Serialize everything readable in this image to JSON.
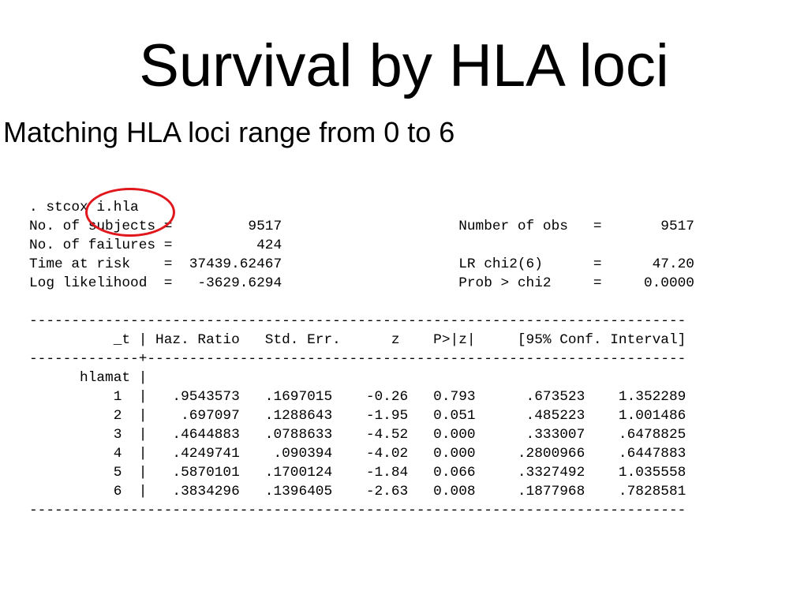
{
  "title": "Survival by HLA loci",
  "subtitle": "Matching HLA loci range from 0 to 6",
  "colors": {
    "highlight_circle": "#e0181e",
    "text": "#000000",
    "background": "#ffffff"
  },
  "output_lines": [
    ". stcox i.hla",
    "No. of subjects =         9517                     Number of obs   =       9517",
    "No. of failures =          424",
    "Time at risk    =  37439.62467                     LR chi2(6)      =      47.20",
    "Log likelihood  =   -3629.6294                     Prob > chi2     =     0.0000",
    "",
    "------------------------------------------------------------------------------",
    "          _t | Haz. Ratio   Std. Err.      z    P>|z|     [95% Conf. Interval]",
    "-------------+----------------------------------------------------------------",
    "      hlamat |",
    "          1  |   .9543573   .1697015    -0.26   0.793      .673523    1.352289",
    "          2  |    .697097   .1288643    -1.95   0.051      .485223    1.001486",
    "          3  |   .4644883   .0788633    -4.52   0.000      .333007    .6478825",
    "          4  |   .4249741    .090394    -4.02   0.000     .2800966    .6447883",
    "          5  |   .5870101   .1700124    -1.84   0.066     .3327492    1.035558",
    "          6  |   .3834296   .1396405    -2.63   0.008     .1877968    .7828581",
    "------------------------------------------------------------------------------"
  ]
}
